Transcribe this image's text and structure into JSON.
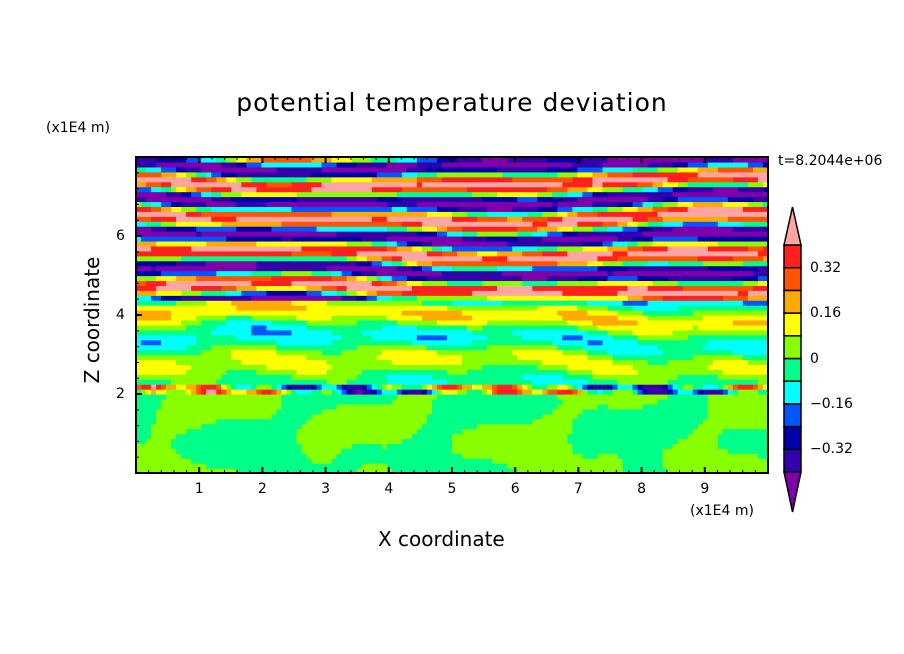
{
  "chart_data": {
    "type": "heatmap",
    "title": "potential temperature deviation",
    "xlabel": "X coordinate",
    "ylabel": "Z coordinate",
    "x_unit": "(x1E4 m)",
    "z_unit": "(x1E4 m)",
    "time_label": "t=8.2044e+06",
    "xlim": [
      0,
      10
    ],
    "ylim": [
      0,
      8
    ],
    "x_ticks": [
      "1",
      "2",
      "3",
      "4",
      "5",
      "6",
      "7",
      "8",
      "9"
    ],
    "y_ticks": [
      "2",
      "4",
      "6"
    ],
    "colorbar": {
      "levels": [
        -0.4,
        -0.32,
        -0.24,
        -0.16,
        -0.08,
        0,
        0.08,
        0.16,
        0.24,
        0.32,
        0.4
      ],
      "tick_labels": [
        {
          "value": 0.32,
          "label": "0.32"
        },
        {
          "value": 0.16,
          "label": "0.16"
        },
        {
          "value": 0,
          "label": "0"
        },
        {
          "value": -0.16,
          "label": "−0.16"
        },
        {
          "value": -0.32,
          "label": "−0.32"
        }
      ],
      "colors": [
        "#7f00aa",
        "#3300aa",
        "#0000aa",
        "#0055ff",
        "#00ffff",
        "#00ff88",
        "#88ff00",
        "#ffff00",
        "#ffaa00",
        "#ff5500",
        "#ff2020",
        "#ffa5a5"
      ],
      "extend": "both"
    }
  }
}
